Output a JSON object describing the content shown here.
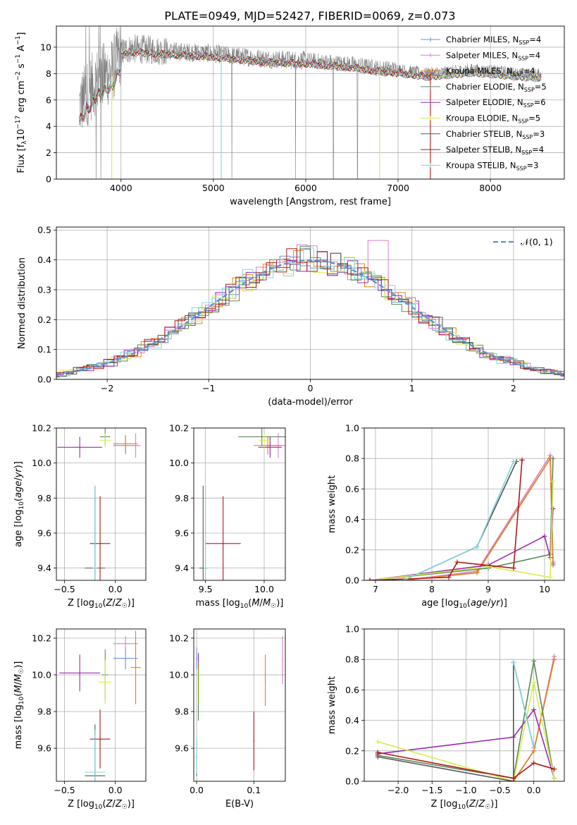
{
  "page_title": "PLATE=0949, MJD=52427, FIBERID=0069, z=0.073",
  "chart_data": [
    {
      "id": "spectrum",
      "type": "line",
      "title": "PLATE=0949, MJD=52427, FIBERID=0069, z=0.073",
      "xlabel": "wavelength [Angstrom, rest frame]",
      "ylabel": "Flux [f_λ10^-17 erg cm^-2 s^-1 A^-1]",
      "xlim": [
        3300,
        8800
      ],
      "ylim": [
        0,
        11.6
      ],
      "xticks": [
        4000,
        5000,
        6000,
        7000,
        8000
      ],
      "yticks": [
        0,
        2,
        4,
        6,
        8,
        10
      ],
      "legend_position": "right",
      "legend": [
        {
          "label": "Chabrier MILES, N_SSP=4",
          "color": "#6d8fd8"
        },
        {
          "label": "Salpeter MILES, N_SSP=4",
          "color": "#e07cc8"
        },
        {
          "label": "Kroupa MILES, N_SSP=4",
          "color": "#e8801a"
        },
        {
          "label": "Chabrier ELODIE, N_SSP=5",
          "color": "#5a8a5a"
        },
        {
          "label": "Salpeter ELODIE, N_SSP=6",
          "color": "#9a2ab0"
        },
        {
          "label": "Kroupa ELODIE, N_SSP=5",
          "color": "#d8ec50"
        },
        {
          "label": "Chabrier STELIB, N_SSP=3",
          "color": "#555555"
        },
        {
          "label": "Salpeter STELIB, N_SSP=4",
          "color": "#b01818"
        },
        {
          "label": "Kroupa STELIB, N_SSP=3",
          "color": "#7fd6dd"
        }
      ],
      "data_color": "#808080",
      "continuum": {
        "x": [
          3550,
          3600,
          3700,
          3800,
          3900,
          4000,
          4100,
          4300,
          4500,
          4800,
          5000,
          5300,
          5600,
          6000,
          6500,
          6800,
          7000,
          7300,
          7500,
          7800,
          8000,
          8300,
          8550
        ],
        "y": [
          5.6,
          6.1,
          7.2,
          7.8,
          8.2,
          9.6,
          9.9,
          9.8,
          9.7,
          9.6,
          9.5,
          9.3,
          9.1,
          9.0,
          8.7,
          8.4,
          8.3,
          8.0,
          8.1,
          8.3,
          8.2,
          8.0,
          7.9
        ]
      }
    },
    {
      "id": "residuals",
      "type": "histogram",
      "xlabel": "(data-model)/error",
      "ylabel": "Normed distribution",
      "xlim": [
        -2.5,
        2.5
      ],
      "ylim": [
        0,
        0.51
      ],
      "xticks": [
        -2,
        -1,
        0,
        1,
        2
      ],
      "yticks": [
        0.0,
        0.1,
        0.2,
        0.3,
        0.4,
        0.5
      ],
      "gaussian_label": "𝒩(0, 1)",
      "gaussian_color": "#5b8fd6",
      "bin_width": 0.1
    },
    {
      "id": "age-vs-z",
      "type": "scatter",
      "xlabel": "Z [log10(Z/Z☉)]",
      "ylabel": "age  [log10(age/yr)]",
      "xlim": [
        -0.58,
        0.3
      ],
      "ylim": [
        9.33,
        10.2
      ],
      "xticks": [
        -0.5,
        0.0
      ],
      "yticks": [
        9.4,
        9.6,
        9.8,
        10.0,
        10.2
      ],
      "points": [
        {
          "model": "Chabrier MILES",
          "x": 0.1,
          "xerr": 0.12,
          "y": 10.1,
          "yerr": 0.05
        },
        {
          "model": "Salpeter MILES",
          "x": 0.2,
          "xerr": 0.05,
          "y": 10.1,
          "yerr": 0.07
        },
        {
          "model": "Kroupa MILES",
          "x": 0.1,
          "xerr": 0.12,
          "y": 10.11,
          "yerr": 0.05
        },
        {
          "model": "Chabrier ELODIE",
          "x": -0.1,
          "xerr": 0.05,
          "y": 10.15,
          "yerr": 0.05
        },
        {
          "model": "Salpeter ELODIE",
          "x": -0.35,
          "xerr": 0.22,
          "y": 10.09,
          "yerr": 0.06
        },
        {
          "model": "Kroupa ELODIE",
          "x": -0.1,
          "xerr": 0.06,
          "y": 10.13,
          "yerr": 0.04
        },
        {
          "model": "Chabrier STELIB",
          "x": -0.2,
          "xerr": 0.1,
          "y": 9.4,
          "yerr": 0.47
        },
        {
          "model": "Salpeter STELIB",
          "x": -0.15,
          "xerr": 0.1,
          "y": 9.54,
          "yerr": 0.27
        },
        {
          "model": "Kroupa STELIB",
          "x": -0.2,
          "xerr": 0.02,
          "y": 9.4,
          "yerr": 0.47
        }
      ]
    },
    {
      "id": "age-vs-mass",
      "type": "scatter",
      "xlabel": "mass [log10(M/M☉)]",
      "ylabel": "",
      "xlim": [
        9.4,
        10.18
      ],
      "ylim": [
        9.33,
        10.2
      ],
      "xticks": [
        9.5,
        10.0
      ],
      "yticks": [
        9.4,
        9.6,
        9.8,
        10.0,
        10.2
      ],
      "points": [
        {
          "model": "Chabrier MILES",
          "x": 10.05,
          "xerr": 0.08,
          "y": 10.1,
          "yerr": 0.05
        },
        {
          "model": "Salpeter MILES",
          "x": 10.12,
          "xerr": 0.08,
          "y": 10.1,
          "yerr": 0.07
        },
        {
          "model": "Kroupa MILES",
          "x": 10.03,
          "xerr": 0.12,
          "y": 10.1,
          "yerr": 0.05
        },
        {
          "model": "Chabrier ELODIE",
          "x": 9.98,
          "xerr": 0.2,
          "y": 10.15,
          "yerr": 0.05
        },
        {
          "model": "Salpeter ELODIE",
          "x": 10.05,
          "xerr": 0.1,
          "y": 10.09,
          "yerr": 0.06
        },
        {
          "model": "Kroupa ELODIE",
          "x": 10.0,
          "xerr": 0.05,
          "y": 10.13,
          "yerr": 0.04
        },
        {
          "model": "Chabrier STELIB",
          "x": 9.48,
          "xerr": 0.03,
          "y": 9.4,
          "yerr": 0.47
        },
        {
          "model": "Salpeter STELIB",
          "x": 9.65,
          "xerr": 0.15,
          "y": 9.54,
          "yerr": 0.27
        },
        {
          "model": "Kroupa STELIB",
          "x": 9.5,
          "xerr": 0.02,
          "y": 9.4,
          "yerr": 0.47
        }
      ]
    },
    {
      "id": "weight-vs-age",
      "type": "line",
      "xlabel": "age  [log10(age/yr)]",
      "ylabel": "mass weight",
      "xlim": [
        6.8,
        10.35
      ],
      "ylim": [
        0,
        1.0
      ],
      "xticks": [
        7,
        8,
        9,
        10
      ],
      "yticks": [
        0.0,
        0.2,
        0.4,
        0.6,
        0.8,
        1.0
      ],
      "series": [
        {
          "name": "Chabrier MILES",
          "x": [
            7.5,
            8.8,
            10.1,
            10.15
          ],
          "y": [
            0.0,
            0.05,
            0.8,
            0.1
          ]
        },
        {
          "name": "Salpeter MILES",
          "x": [
            7.5,
            8.8,
            10.1,
            10.15
          ],
          "y": [
            0.0,
            0.06,
            0.82,
            0.12
          ]
        },
        {
          "name": "Kroupa MILES",
          "x": [
            7.5,
            8.8,
            10.1,
            10.15
          ],
          "y": [
            0.0,
            0.05,
            0.8,
            0.11
          ]
        },
        {
          "name": "Chabrier ELODIE",
          "x": [
            6.9,
            9.0,
            10.1,
            10.15
          ],
          "y": [
            0.0,
            0.08,
            0.17,
            0.8
          ]
        },
        {
          "name": "Salpeter ELODIE",
          "x": [
            6.9,
            9.0,
            10.0,
            10.1,
            10.15
          ],
          "y": [
            0.0,
            0.1,
            0.29,
            0.15,
            0.47
          ]
        },
        {
          "name": "Kroupa ELODIE",
          "x": [
            6.9,
            9.0,
            10.1,
            10.15
          ],
          "y": [
            0.0,
            0.09,
            0.02,
            0.65
          ]
        },
        {
          "name": "Chabrier STELIB",
          "x": [
            7.5,
            8.8,
            9.5
          ],
          "y": [
            0.0,
            0.22,
            0.78
          ]
        },
        {
          "name": "Salpeter STELIB",
          "x": [
            6.9,
            8.3,
            8.45,
            9.45,
            9.6
          ],
          "y": [
            0.0,
            0.02,
            0.12,
            0.08,
            0.79
          ]
        },
        {
          "name": "Kroupa STELIB",
          "x": [
            7.5,
            8.8,
            9.45
          ],
          "y": [
            0.0,
            0.22,
            0.78
          ]
        }
      ]
    },
    {
      "id": "mass-vs-z",
      "type": "scatter",
      "xlabel": "Z [log10(Z/Z☉)]",
      "ylabel": "mass [log10(M/M☉)]",
      "xlim": [
        -0.58,
        0.3
      ],
      "ylim": [
        9.42,
        10.25
      ],
      "xticks": [
        -0.5,
        0.0
      ],
      "yticks": [
        9.6,
        9.8,
        10.0,
        10.2
      ],
      "points": [
        {
          "model": "Chabrier MILES",
          "x": 0.1,
          "xerr": 0.12,
          "y": 10.09,
          "yerr": 0.06
        },
        {
          "model": "Salpeter MILES",
          "x": 0.1,
          "xerr": 0.12,
          "y": 10.17,
          "yerr": 0.04
        },
        {
          "model": "Kroupa MILES",
          "x": 0.2,
          "xerr": 0.05,
          "y": 10.04,
          "yerr": 0.2
        },
        {
          "model": "Chabrier ELODIE",
          "x": -0.1,
          "xerr": 0.03,
          "y": 10.0,
          "yerr": 0.14
        },
        {
          "model": "Salpeter ELODIE",
          "x": -0.35,
          "xerr": 0.2,
          "y": 10.01,
          "yerr": 0.1
        },
        {
          "model": "Kroupa ELODIE",
          "x": -0.1,
          "xerr": 0.06,
          "y": 9.96,
          "yerr": 0.12
        },
        {
          "model": "Chabrier STELIB",
          "x": -0.2,
          "xerr": 0.1,
          "y": 9.45,
          "yerr": 0.28
        },
        {
          "model": "Salpeter STELIB",
          "x": -0.15,
          "xerr": 0.1,
          "y": 9.65,
          "yerr": 0.16
        },
        {
          "model": "Kroupa STELIB",
          "x": -0.2,
          "xerr": 0.1,
          "y": 9.47,
          "yerr": 0.23
        }
      ]
    },
    {
      "id": "mass-vs-ebv",
      "type": "scatter",
      "xlabel": "E(B-V)",
      "ylabel": "",
      "xlim": [
        -0.005,
        0.155
      ],
      "ylim": [
        9.42,
        10.25
      ],
      "xticks": [
        0.0,
        0.1
      ],
      "yticks": [
        9.6,
        9.8,
        10.0,
        10.2
      ],
      "points": [
        {
          "model": "Chabrier MILES",
          "x": 0.0,
          "y": 10.09,
          "yerr": 0.06
        },
        {
          "model": "Salpeter MILES",
          "x": 0.15,
          "y": 10.08,
          "yerr": 0.13
        },
        {
          "model": "Kroupa MILES",
          "x": 0.12,
          "y": 9.97,
          "yerr": 0.14
        },
        {
          "model": "Chabrier ELODIE",
          "x": 0.003,
          "y": 9.93,
          "yerr": 0.18
        },
        {
          "model": "Salpeter ELODIE",
          "x": 0.003,
          "y": 10.08,
          "yerr": 0.04
        },
        {
          "model": "Kroupa ELODIE",
          "x": 0.004,
          "y": 9.96,
          "yerr": 0.12
        },
        {
          "model": "Chabrier STELIB",
          "x": 0.0,
          "y": 9.55,
          "yerr": 0.1
        },
        {
          "model": "Salpeter STELIB",
          "x": 0.1,
          "y": 9.64,
          "yerr": 0.16
        },
        {
          "model": "Kroupa STELIB",
          "x": 0.0,
          "y": 9.56,
          "yerr": 0.1
        }
      ]
    },
    {
      "id": "weight-vs-z",
      "type": "line",
      "xlabel": "Z [log10(Z/Z☉)]",
      "ylabel": "mass weight",
      "xlim": [
        -2.5,
        0.45
      ],
      "ylim": [
        0,
        1.0
      ],
      "xticks": [
        -2.0,
        -1.5,
        -1.0,
        -0.5,
        0.0
      ],
      "yticks": [
        0.0,
        0.2,
        0.4,
        0.6,
        0.8,
        1.0
      ],
      "series": [
        {
          "name": "Chabrier MILES",
          "x": [
            -0.3,
            0.0,
            0.3
          ],
          "y": [
            0.0,
            0.2,
            0.8
          ]
        },
        {
          "name": "Salpeter MILES",
          "x": [
            -0.3,
            0.0,
            0.3
          ],
          "y": [
            0.0,
            0.2,
            0.82
          ]
        },
        {
          "name": "Kroupa MILES",
          "x": [
            -0.3,
            0.0,
            0.3
          ],
          "y": [
            0.0,
            0.2,
            0.8
          ]
        },
        {
          "name": "Chabrier ELODIE",
          "x": [
            -2.3,
            -0.3,
            0.0,
            0.3
          ],
          "y": [
            0.17,
            0.02,
            0.79,
            0.02
          ]
        },
        {
          "name": "Salpeter ELODIE",
          "x": [
            -2.3,
            -0.3,
            0.0,
            0.3
          ],
          "y": [
            0.18,
            0.29,
            0.47,
            0.02
          ]
        },
        {
          "name": "Kroupa ELODIE",
          "x": [
            -2.3,
            -0.3,
            0.0,
            0.3
          ],
          "y": [
            0.26,
            0.0,
            0.65,
            0.02
          ]
        },
        {
          "name": "Chabrier STELIB",
          "x": [
            -2.3,
            -0.3,
            -0.3,
            0.0
          ],
          "y": [
            0.16,
            0.0,
            0.78,
            0.22
          ]
        },
        {
          "name": "Salpeter STELIB",
          "x": [
            -2.3,
            -0.3,
            0.0,
            0.3
          ],
          "y": [
            0.19,
            0.02,
            0.12,
            0.08
          ]
        },
        {
          "name": "Kroupa STELIB",
          "x": [
            -0.3,
            0.0
          ],
          "y": [
            0.78,
            0.22
          ]
        }
      ]
    }
  ]
}
